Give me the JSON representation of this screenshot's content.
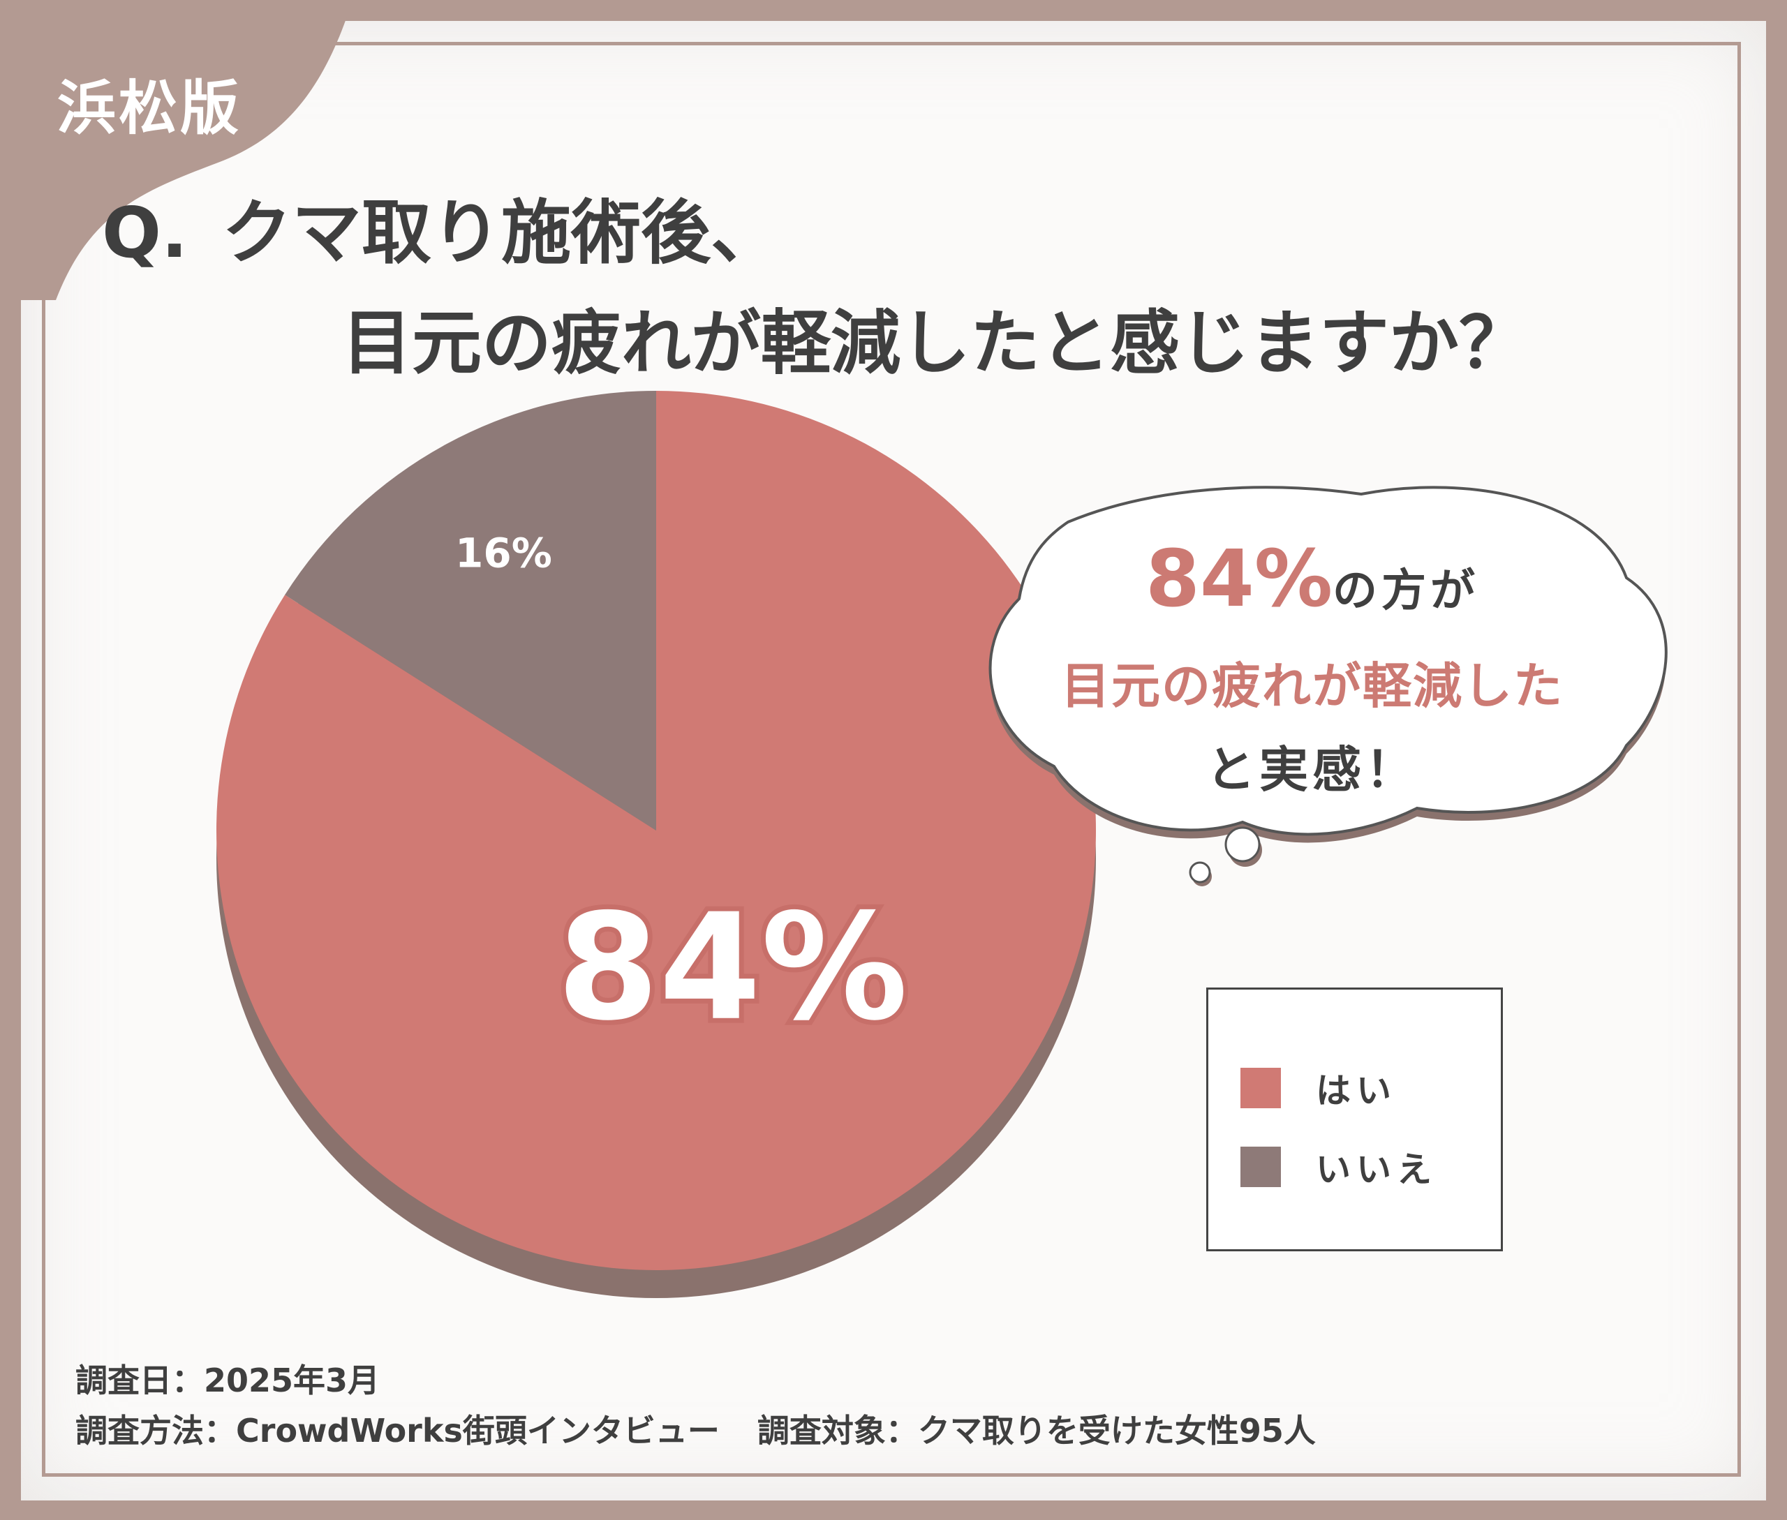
{
  "header": {
    "region": "浜松版",
    "question_prefix": "Q.",
    "question_line1": "クマ取り施術後、",
    "question_line2": "目元の疲れが軽減したと感じますか？"
  },
  "chart_data": {
    "type": "pie",
    "title": "Q. クマ取り施術後、目元の疲れが軽減したと感じますか？",
    "slices": [
      {
        "label": "はい",
        "value": 84,
        "display": "84%",
        "color": "#d07a74"
      },
      {
        "label": "いいえ",
        "value": 16,
        "display": "16%",
        "color": "#8e7a78"
      }
    ],
    "legend_placement": "right",
    "colors": {
      "shadow": "#8a726d",
      "label_outline": "#c76f69"
    }
  },
  "callout": {
    "percent": "84%",
    "line1_rest": "の方が",
    "line2": "目元の疲れが軽減した",
    "line3": "と実感！"
  },
  "legend": {
    "items": [
      {
        "label": "はい",
        "color": "#d07a74"
      },
      {
        "label": "いいえ",
        "color": "#8e7a78"
      }
    ]
  },
  "footer": {
    "date": "調査日：2025年3月",
    "method": "調査方法：CrowdWorks街頭インタビュー",
    "target": "調査対象：クマ取りを受けた女性95人"
  }
}
